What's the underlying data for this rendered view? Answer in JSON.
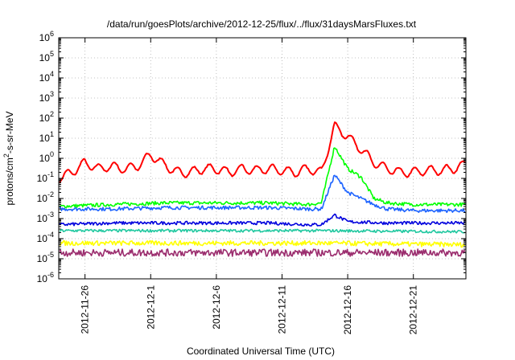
{
  "chart_data": {
    "type": "line",
    "title": "/data/run/goesPlots/archive/2012-12-25/flux/../flux/31daysMarsFluxes.txt",
    "xlabel": "Coordinated Universal Time (UTC)",
    "ylabel": {
      "base": "protons/cm",
      "sup": "2",
      "rest": "-s-sr-MeV"
    },
    "yscale": "log",
    "ylim": [
      1e-06,
      1000000.0
    ],
    "yticks": [
      {
        "exp": "-6",
        "value": 1e-06
      },
      {
        "exp": "-5",
        "value": 1e-05
      },
      {
        "exp": "-4",
        "value": 0.0001
      },
      {
        "exp": "-3",
        "value": 0.001
      },
      {
        "exp": "-2",
        "value": 0.01
      },
      {
        "exp": "-1",
        "value": 0.1
      },
      {
        "exp": "0",
        "value": 1
      },
      {
        "exp": "1",
        "value": 10
      },
      {
        "exp": "2",
        "value": 100
      },
      {
        "exp": "3",
        "value": 1000
      },
      {
        "exp": "4",
        "value": 10000
      },
      {
        "exp": "5",
        "value": 100000
      },
      {
        "exp": "6",
        "value": 1000000
      }
    ],
    "xlim": [
      "2012-11-24",
      "2012-12-25"
    ],
    "xticks": [
      "2012-11-26",
      "2012-12-1",
      "2012-12-6",
      "2012-12-11",
      "2012-12-16",
      "2012-12-21"
    ],
    "grid": true,
    "series": [
      {
        "color": "#ff0000",
        "x": [
          "2012-11-24",
          "2012-11-25",
          "2012-11-26",
          "2012-11-27",
          "2012-11-28",
          "2012-11-29",
          "2012-11-30",
          "2012-12-1",
          "2012-12-2",
          "2012-12-3",
          "2012-12-4",
          "2012-12-5",
          "2012-12-6",
          "2012-12-7",
          "2012-12-8",
          "2012-12-9",
          "2012-12-10",
          "2012-12-11",
          "2012-12-12",
          "2012-12-13",
          "2012-12-14",
          "2012-12-15",
          "2012-12-16",
          "2012-12-17",
          "2012-12-18",
          "2012-12-19",
          "2012-12-20",
          "2012-12-21",
          "2012-12-22",
          "2012-12-23",
          "2012-12-24",
          "2012-12-25"
        ],
        "y": [
          0.1,
          0.2,
          0.6,
          0.3,
          0.4,
          0.3,
          0.4,
          1.5,
          0.5,
          0.2,
          0.2,
          0.3,
          0.3,
          0.2,
          0.3,
          0.25,
          0.3,
          0.25,
          0.2,
          0.3,
          0.2,
          40,
          12,
          3,
          0.6,
          0.3,
          0.2,
          0.2,
          0.25,
          0.25,
          0.3,
          0.5
        ]
      },
      {
        "color": "#00ff00",
        "x": [
          "2012-11-24",
          "2012-11-28",
          "2012-12-2",
          "2012-12-6",
          "2012-12-10",
          "2012-12-13",
          "2012-12-14",
          "2012-12-15",
          "2012-12-16",
          "2012-12-17",
          "2012-12-18",
          "2012-12-19",
          "2012-12-21",
          "2012-12-25"
        ],
        "y": [
          0.004,
          0.005,
          0.006,
          0.006,
          0.006,
          0.005,
          0.006,
          4,
          0.3,
          0.12,
          0.01,
          0.006,
          0.005,
          0.005
        ]
      },
      {
        "color": "#1e64ff",
        "x": [
          "2012-11-24",
          "2012-11-28",
          "2012-12-2",
          "2012-12-6",
          "2012-12-10",
          "2012-12-13",
          "2012-12-14",
          "2012-12-15",
          "2012-12-16",
          "2012-12-17",
          "2012-12-18",
          "2012-12-19",
          "2012-12-21",
          "2012-12-25"
        ],
        "y": [
          0.003,
          0.003,
          0.0035,
          0.0035,
          0.0035,
          0.003,
          0.003,
          0.15,
          0.02,
          0.01,
          0.005,
          0.003,
          0.0025,
          0.0025
        ]
      },
      {
        "color": "#0000dd",
        "x": [
          "2012-11-24",
          "2012-11-28",
          "2012-12-2",
          "2012-12-6",
          "2012-12-10",
          "2012-12-13",
          "2012-12-14",
          "2012-12-15",
          "2012-12-16",
          "2012-12-19",
          "2012-12-25"
        ],
        "y": [
          0.0005,
          0.0006,
          0.0006,
          0.0006,
          0.0006,
          0.0005,
          0.0005,
          0.0015,
          0.0007,
          0.0006,
          0.0006
        ]
      },
      {
        "color": "#20c8a0",
        "x": [
          "2012-11-24",
          "2012-12-4",
          "2012-12-14",
          "2012-12-25"
        ],
        "y": [
          0.00025,
          0.00025,
          0.00025,
          0.00022
        ]
      },
      {
        "color": "#ffff00",
        "x": [
          "2012-11-24",
          "2012-12-4",
          "2012-12-14",
          "2012-12-25"
        ],
        "y": [
          6e-05,
          6e-05,
          6e-05,
          5e-05
        ]
      },
      {
        "color": "#9b2d6e",
        "x": [
          "2012-11-24",
          "2012-12-4",
          "2012-12-14",
          "2012-12-25"
        ],
        "y": [
          2e-05,
          2e-05,
          2e-05,
          2e-05
        ]
      }
    ]
  }
}
